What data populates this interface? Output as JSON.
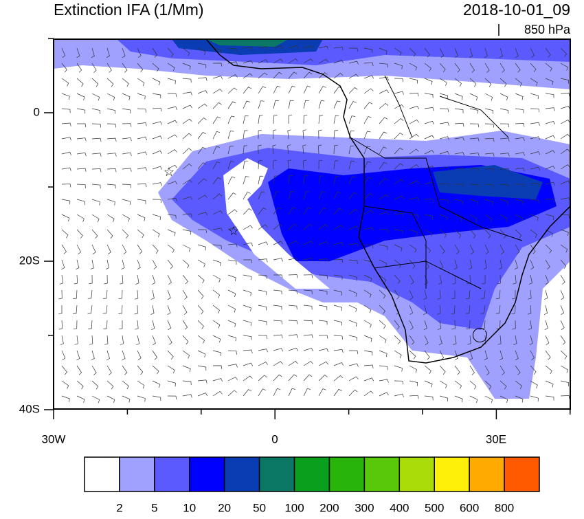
{
  "header": {
    "title": "Extinction IFA (1/Mm)",
    "time": "2018-10-01_09",
    "level": "850 hPa"
  },
  "map": {
    "lat_labels": [
      "0",
      "20S",
      "40S"
    ],
    "lon_labels": [
      "30W",
      "0",
      "30E"
    ]
  },
  "colorbar": {
    "colors": [
      "#ffffff",
      "#a0a0ff",
      "#5a5aff",
      "#0000ff",
      "#0a3cb4",
      "#0a7864",
      "#0aa01e",
      "#28b40a",
      "#5ac80a",
      "#aadc0a",
      "#fff00a",
      "#ffaa00",
      "#ff5a00",
      "#ff1400"
    ],
    "labels": [
      "2",
      "5",
      "10",
      "20",
      "50",
      "100",
      "200",
      "300",
      "400",
      "500",
      "600",
      "800"
    ]
  }
}
